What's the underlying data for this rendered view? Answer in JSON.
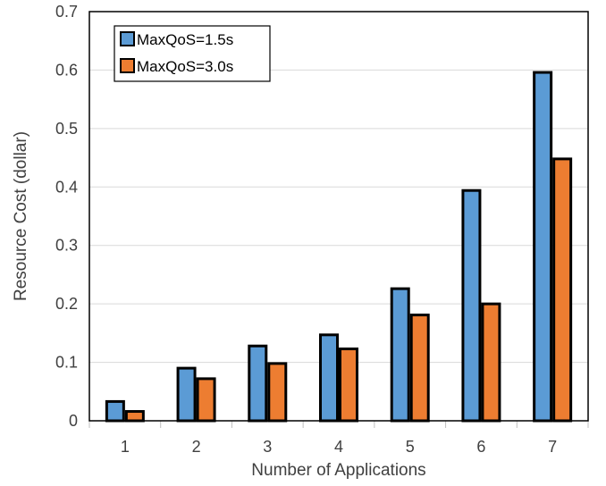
{
  "chart_data": {
    "type": "bar",
    "title": "",
    "xlabel": "Number of Applications",
    "ylabel": "Resource Cost (dollar)",
    "categories": [
      "1",
      "2",
      "3",
      "4",
      "5",
      "6",
      "7"
    ],
    "ylim": [
      0,
      0.7
    ],
    "yticks": [
      "0",
      "0.1",
      "0.2",
      "0.3",
      "0.4",
      "0.5",
      "0.6",
      "0.7"
    ],
    "grid": true,
    "legend_position": "top-left",
    "series": [
      {
        "name": "MaxQoS=1.5s",
        "color": "#5B9BD5",
        "values": [
          0.033,
          0.09,
          0.128,
          0.147,
          0.226,
          0.394,
          0.596
        ]
      },
      {
        "name": "MaxQoS=3.0s",
        "color": "#ED7D31",
        "values": [
          0.016,
          0.072,
          0.098,
          0.123,
          0.181,
          0.2,
          0.448
        ]
      }
    ]
  }
}
